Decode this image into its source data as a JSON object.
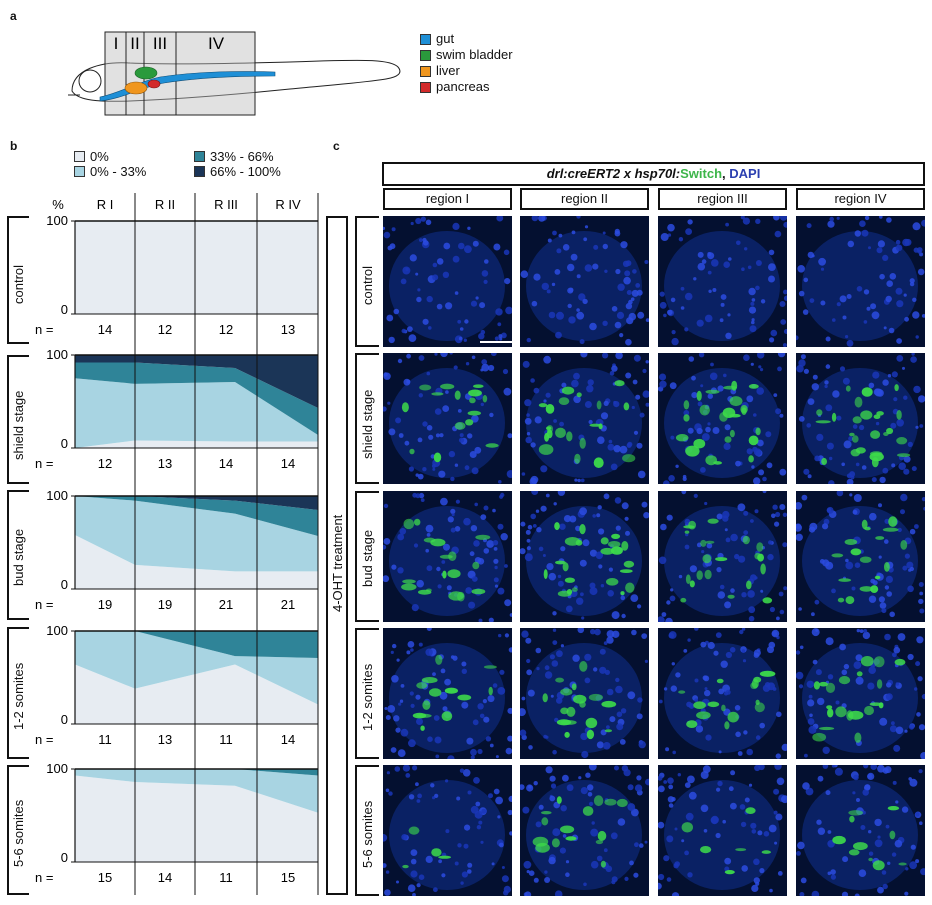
{
  "figure": {
    "panels": {
      "a": "a",
      "b": "b",
      "c": "c"
    },
    "panel_a": {
      "regions": [
        "I",
        "II",
        "III",
        "IV"
      ],
      "legend": [
        {
          "label": "gut",
          "color": "#1e8fd6"
        },
        {
          "label": "swim bladder",
          "color": "#2a9a3c"
        },
        {
          "label": "liver",
          "color": "#f0961e"
        },
        {
          "label": "pancreas",
          "color": "#d22a2a"
        }
      ]
    },
    "panel_b": {
      "legend": [
        {
          "label": "0%",
          "color": "#e7ecf2"
        },
        {
          "label": "0% - 33%",
          "color": "#a8d4e2"
        },
        {
          "label": "33% - 66%",
          "color": "#2f8498"
        },
        {
          "label": "66% - 100%",
          "color": "#1b3557"
        }
      ],
      "y_unit": "%",
      "n_label": "n =",
      "y_tick_top": "100",
      "y_tick_bottom": "0"
    },
    "panel_c": {
      "title_parts": [
        {
          "text": "drl:creERT2 x hsp70l:",
          "color": "#111111",
          "italic": true
        },
        {
          "text": "Switch",
          "color": "#3db54a",
          "italic": false
        },
        {
          "text": ", ",
          "color": "#111111",
          "italic": false
        },
        {
          "text": "DAPI",
          "color": "#2b3fb0",
          "italic": false
        }
      ],
      "columns": [
        "region I",
        "region II",
        "region III",
        "region IV"
      ],
      "side_label": "4-OHT treatment",
      "rows": [
        "control",
        "shield stage",
        "bud stage",
        "1-2 somites",
        "5-6 somites"
      ]
    }
  },
  "chart_data": {
    "type": "area",
    "xlabel": "",
    "ylabel": "%",
    "categories": [
      "R I",
      "R II",
      "R III",
      "R IV"
    ],
    "ylim": [
      0,
      100
    ],
    "stack_order": [
      "0%",
      "0% - 33%",
      "33% - 66%",
      "66% - 100%"
    ],
    "colors": [
      "#e7ecf2",
      "#a8d4e2",
      "#2f8498",
      "#1b3557"
    ],
    "facets": [
      {
        "name": "control",
        "n": [
          14,
          12,
          12,
          13
        ],
        "series": [
          {
            "name": "0%",
            "values": [
              100,
              100,
              100,
              100
            ]
          },
          {
            "name": "0% - 33%",
            "values": [
              0,
              0,
              0,
              0
            ]
          },
          {
            "name": "33% - 66%",
            "values": [
              0,
              0,
              0,
              0
            ]
          },
          {
            "name": "66% - 100%",
            "values": [
              0,
              0,
              0,
              0
            ]
          }
        ]
      },
      {
        "name": "shield stage",
        "n": [
          12,
          13,
          14,
          14
        ],
        "series": [
          {
            "name": "0%",
            "values": [
              0,
              8,
              7,
              7
            ]
          },
          {
            "name": "0% - 33%",
            "values": [
              75,
              61,
              64,
              7
            ]
          },
          {
            "name": "33% - 66%",
            "values": [
              17,
              23,
              15,
              29
            ]
          },
          {
            "name": "66% - 100%",
            "values": [
              8,
              8,
              14,
              57
            ]
          }
        ]
      },
      {
        "name": "bud stage",
        "n": [
          19,
          19,
          21,
          21
        ],
        "series": [
          {
            "name": "0%",
            "values": [
              58,
              26,
              19,
              19
            ]
          },
          {
            "name": "0% - 33%",
            "values": [
              42,
              69,
              62,
              38
            ]
          },
          {
            "name": "33% - 66%",
            "values": [
              0,
              5,
              14,
              28
            ]
          },
          {
            "name": "66% - 100%",
            "values": [
              0,
              0,
              5,
              15
            ]
          }
        ]
      },
      {
        "name": "1-2 somites",
        "n": [
          11,
          13,
          11,
          14
        ],
        "series": [
          {
            "name": "0%",
            "values": [
              64,
              38,
              64,
              21
            ]
          },
          {
            "name": "0% - 33%",
            "values": [
              36,
              62,
              9,
              50
            ]
          },
          {
            "name": "33% - 66%",
            "values": [
              0,
              0,
              27,
              29
            ]
          },
          {
            "name": "66% - 100%",
            "values": [
              0,
              0,
              0,
              0
            ]
          }
        ]
      },
      {
        "name": "5-6 somites",
        "n": [
          15,
          14,
          11,
          15
        ],
        "series": [
          {
            "name": "0%",
            "values": [
              93,
              86,
              82,
              53
            ]
          },
          {
            "name": "0% - 33%",
            "values": [
              7,
              14,
              18,
              40
            ]
          },
          {
            "name": "33% - 66%",
            "values": [
              0,
              0,
              0,
              7
            ]
          },
          {
            "name": "66% - 100%",
            "values": [
              0,
              0,
              0,
              0
            ]
          }
        ]
      }
    ]
  }
}
